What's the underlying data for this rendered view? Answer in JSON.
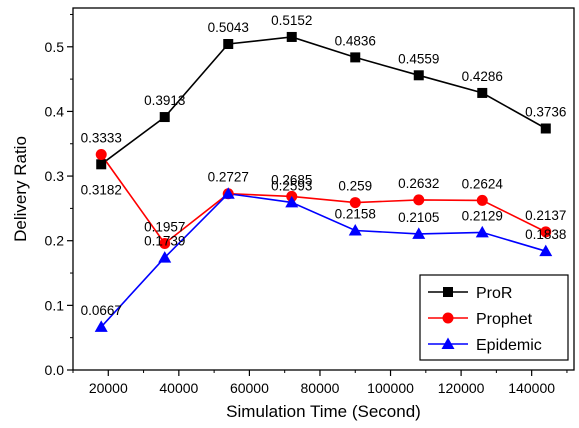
{
  "chart_data": {
    "type": "line",
    "xlabel": "Simulation Time (Second)",
    "ylabel": "Delivery Ratio",
    "xlim": [
      10000,
      152000
    ],
    "ylim": [
      0.0,
      0.56
    ],
    "xticks": [
      20000,
      40000,
      60000,
      80000,
      100000,
      120000,
      140000
    ],
    "yticks": [
      0.0,
      0.1,
      0.2,
      0.3,
      0.4,
      0.5
    ],
    "ytick_labels": [
      "0.0",
      "0.1",
      "0.2",
      "0.3",
      "0.4",
      "0.5"
    ],
    "x": [
      18000,
      36000,
      54000,
      72000,
      90000,
      108000,
      126000,
      144000
    ],
    "legend_position": "bottom-right",
    "series": [
      {
        "name": "ProR",
        "color": "#000000",
        "marker": "square",
        "values": [
          0.3182,
          0.3913,
          0.5043,
          0.5152,
          0.4836,
          0.4559,
          0.4286,
          0.3736
        ],
        "labels": [
          "0.3182",
          "0.3913",
          "0.5043",
          "0.5152",
          "0.4836",
          "0.4559",
          "0.4286",
          "0.3736"
        ]
      },
      {
        "name": "Prophet",
        "color": "#ff0000",
        "marker": "circle",
        "values": [
          0.3333,
          0.1957,
          0.2727,
          0.2685,
          0.259,
          0.2632,
          0.2624,
          0.2137
        ],
        "labels": [
          "0.3333",
          "0.1957",
          "0.2727",
          "0.2685",
          "0.259",
          "0.2632",
          "0.2624",
          "0.2137"
        ]
      },
      {
        "name": "Epidemic",
        "color": "#0000ff",
        "marker": "triangle",
        "values": [
          0.0667,
          0.1739,
          0.2727,
          0.2593,
          0.2158,
          0.2105,
          0.2129,
          0.1838
        ],
        "labels": [
          "0.0667",
          "0.1739",
          "",
          "0.2593",
          "0.2158",
          "0.2105",
          "0.2129",
          "0.1838"
        ]
      }
    ]
  }
}
